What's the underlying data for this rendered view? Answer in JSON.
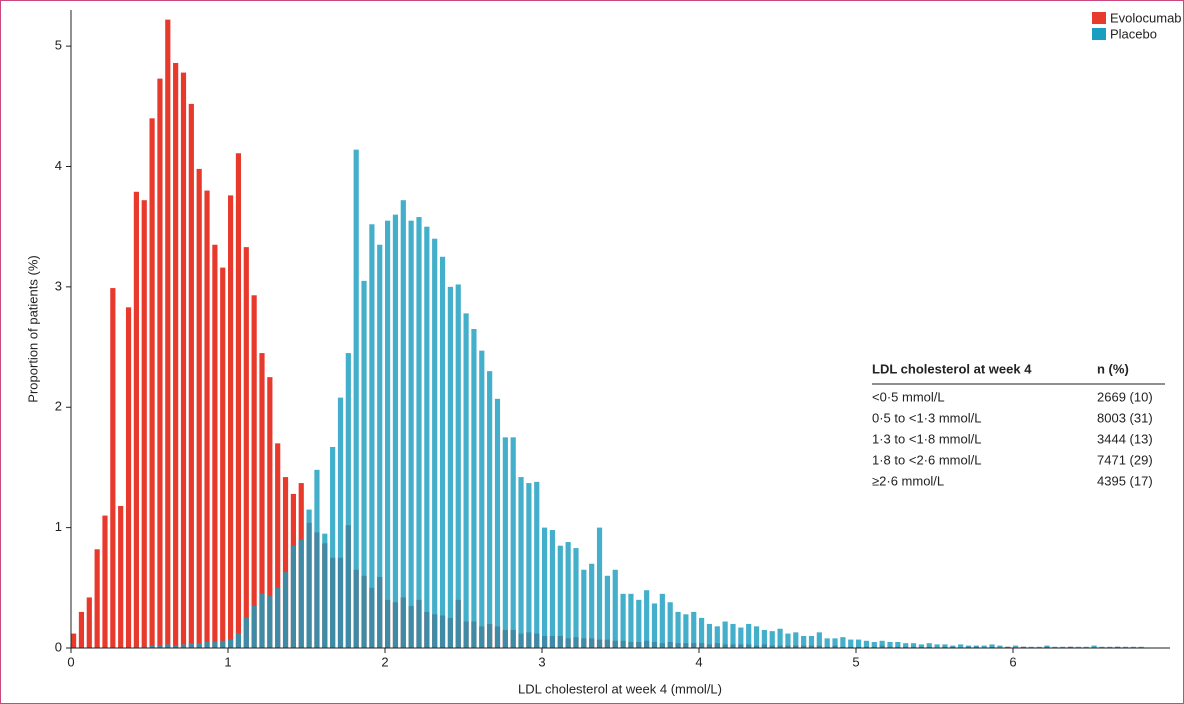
{
  "chart_data": {
    "type": "histogram",
    "x_label": "LDL cholesterol at week 4 (mmol/L)",
    "y_label": "Proportion of patients (%)",
    "bins": [
      0,
      0.05,
      0.1,
      0.15,
      0.2,
      0.25,
      0.3,
      0.35,
      0.4,
      0.45,
      0.5,
      0.55,
      0.6,
      0.65,
      0.7,
      0.75,
      0.8,
      0.85,
      0.9,
      0.95,
      1,
      1.05,
      1.1,
      1.15,
      1.2,
      1.25,
      1.3,
      1.35,
      1.4,
      1.45,
      1.5,
      1.55,
      1.6,
      1.65,
      1.7,
      1.75,
      1.8,
      1.85,
      1.9,
      1.95,
      2,
      2.05,
      2.1,
      2.15,
      2.2,
      2.25,
      2.3,
      2.35,
      2.4,
      2.45,
      2.5,
      2.55,
      2.6,
      2.65,
      2.7,
      2.75,
      2.8,
      2.85,
      2.9,
      2.95,
      3,
      3.05,
      3.1,
      3.15,
      3.2,
      3.25,
      3.3,
      3.35,
      3.4,
      3.45,
      3.5,
      3.55,
      3.6,
      3.65,
      3.7,
      3.75,
      3.8,
      3.85,
      3.9,
      3.95,
      4,
      4.05,
      4.1,
      4.15,
      4.2,
      4.25,
      4.3,
      4.35,
      4.4,
      4.45,
      4.5,
      4.55,
      4.6,
      4.65,
      4.7,
      4.75,
      4.8,
      4.85,
      4.9,
      4.95,
      5,
      5.05,
      5.1,
      5.15,
      5.2,
      5.25,
      5.3,
      5.35,
      5.4,
      5.45,
      5.5,
      5.55,
      5.6,
      5.65,
      5.7,
      5.75,
      5.8,
      5.85,
      5.9,
      5.95,
      6,
      6.05,
      6.1,
      6.15,
      6.2,
      6.25,
      6.3,
      6.35,
      6.4,
      6.45,
      6.5,
      6.55,
      6.6,
      6.65,
      6.7,
      6.75,
      6.8,
      6.85
    ],
    "series": [
      {
        "name": "Evolocumab",
        "color": "#e8392d",
        "values": [
          0.12,
          0.3,
          0.42,
          0.82,
          1.1,
          2.99,
          1.18,
          2.83,
          3.79,
          3.72,
          4.4,
          4.73,
          5.22,
          4.86,
          4.78,
          4.52,
          3.98,
          3.8,
          3.35,
          3.16,
          3.76,
          4.11,
          3.33,
          2.93,
          2.45,
          2.25,
          1.7,
          1.42,
          1.28,
          1.37,
          1.04,
          0.96,
          0.87,
          0.75,
          0.75,
          1.02,
          0.65,
          0.6,
          0.5,
          0.59,
          0.4,
          0.38,
          0.42,
          0.35,
          0.4,
          0.3,
          0.28,
          0.27,
          0.25,
          0.4,
          0.22,
          0.22,
          0.18,
          0.2,
          0.18,
          0.15,
          0.15,
          0.12,
          0.13,
          0.12,
          0.1,
          0.1,
          0.1,
          0.08,
          0.09,
          0.08,
          0.08,
          0.07,
          0.07,
          0.06,
          0.06,
          0.05,
          0.05,
          0.06,
          0.05,
          0.04,
          0.05,
          0.04,
          0.04,
          0.04,
          0.04,
          0.03,
          0.04,
          0.03,
          0.03,
          0.03,
          0.03,
          0.02,
          0.03,
          0.02,
          0.02,
          0.02,
          0.02,
          0.02,
          0.02,
          0.02,
          0.01,
          0.02,
          0.01,
          0.01,
          0.01,
          0.01,
          0.01,
          0.02,
          0.01,
          0.01,
          0.01,
          0.01,
          0.01,
          0.01,
          0,
          0.01,
          0.01,
          0,
          0.01,
          0.01,
          0,
          0.01,
          0,
          0.01,
          0,
          0.01,
          0,
          0,
          0.01,
          0,
          0,
          0.01,
          0,
          0,
          0,
          0,
          0,
          0.01,
          0,
          0,
          0
        ]
      },
      {
        "name": "Placebo",
        "color": "#1a9ec0",
        "values": [
          0,
          0,
          0,
          0,
          0,
          0,
          0,
          0,
          0.01,
          0.01,
          0.02,
          0.02,
          0.03,
          0.02,
          0.03,
          0.04,
          0.04,
          0.05,
          0.05,
          0.06,
          0.07,
          0.12,
          0.25,
          0.35,
          0.45,
          0.43,
          0.5,
          0.63,
          0.85,
          0.9,
          1.15,
          1.48,
          0.95,
          1.67,
          2.08,
          2.45,
          4.14,
          3.05,
          3.52,
          3.35,
          3.55,
          3.6,
          3.72,
          3.55,
          3.58,
          3.5,
          3.4,
          3.25,
          3.0,
          3.02,
          2.78,
          2.65,
          2.47,
          2.3,
          2.07,
          1.75,
          1.75,
          1.42,
          1.37,
          1.38,
          1.0,
          0.98,
          0.85,
          0.88,
          0.83,
          0.65,
          0.7,
          1.0,
          0.6,
          0.65,
          0.45,
          0.45,
          0.4,
          0.48,
          0.37,
          0.45,
          0.38,
          0.3,
          0.28,
          0.3,
          0.25,
          0.2,
          0.18,
          0.22,
          0.2,
          0.17,
          0.2,
          0.18,
          0.15,
          0.14,
          0.16,
          0.12,
          0.13,
          0.1,
          0.1,
          0.13,
          0.08,
          0.08,
          0.09,
          0.07,
          0.07,
          0.06,
          0.05,
          0.06,
          0.05,
          0.05,
          0.04,
          0.04,
          0.03,
          0.04,
          0.03,
          0.03,
          0.02,
          0.03,
          0.02,
          0.02,
          0.02,
          0.03,
          0.02,
          0.01,
          0.02,
          0.01,
          0.01,
          0.01,
          0.02,
          0.01,
          0.01,
          0.01,
          0.01,
          0.01,
          0.02,
          0.01,
          0.01,
          0.01,
          0.01,
          0.01,
          0.01
        ]
      }
    ],
    "xlim": [
      0,
      7
    ],
    "ylim": [
      0,
      5.3
    ],
    "xticks": [
      0,
      1,
      2,
      3,
      4,
      5,
      6
    ],
    "yticks": [
      0,
      1,
      2,
      3,
      4,
      5
    ],
    "legend": "upper right",
    "table": {
      "header": [
        "LDL cholesterol at week 4",
        "n (%)"
      ],
      "rows": [
        [
          "<0·5 mmol/L",
          "2669 (10)"
        ],
        [
          "0·5 to <1·3 mmol/L",
          "8003 (31)"
        ],
        [
          "1·3 to <1·8 mmol/L",
          "3444 (13)"
        ],
        [
          "1·8 to <2·6 mmol/L",
          "7471 (29)"
        ],
        [
          "≥2·6  mmol/L",
          "4395 (17)"
        ]
      ]
    }
  }
}
